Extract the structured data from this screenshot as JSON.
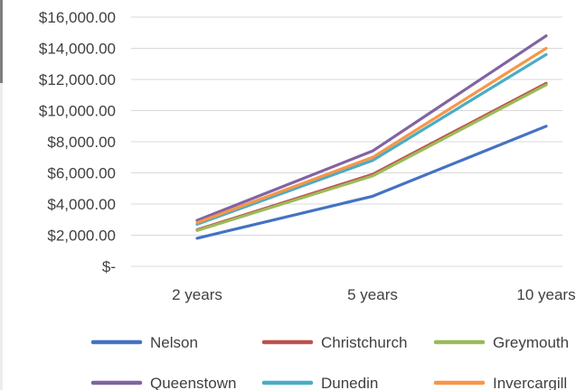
{
  "chart_data": {
    "type": "line",
    "x": [
      "2 years",
      "5 years",
      "10 years"
    ],
    "x_positions": [
      2,
      5,
      10
    ],
    "ylim": [
      0,
      16000
    ],
    "ytick_values": [
      0,
      2000,
      4000,
      6000,
      8000,
      10000,
      12000,
      14000,
      16000
    ],
    "ytick_labels": [
      "$-",
      "$2,000.00",
      "$4,000.00",
      "$6,000.00",
      "$8,000.00",
      "$10,000.00",
      "$12,000.00",
      "$14,000.00",
      "$16,000.00"
    ],
    "grid": true,
    "legend_position": "bottom",
    "series": [
      {
        "name": "Nelson",
        "color": "#4472C4",
        "values": [
          1800,
          4500,
          9000
        ]
      },
      {
        "name": "Christchurch",
        "color": "#C0504D",
        "values": [
          2350,
          5900,
          11750
        ]
      },
      {
        "name": "Greymouth",
        "color": "#9BBB59",
        "values": [
          2300,
          5800,
          11650
        ]
      },
      {
        "name": "Queenstown",
        "color": "#8064A2",
        "values": [
          2950,
          7400,
          14800
        ]
      },
      {
        "name": "Dunedin",
        "color": "#4BACC6",
        "values": [
          2700,
          6800,
          13600
        ]
      },
      {
        "name": "Invercargill",
        "color": "#F79646",
        "values": [
          2800,
          7000,
          14000
        ]
      }
    ]
  }
}
